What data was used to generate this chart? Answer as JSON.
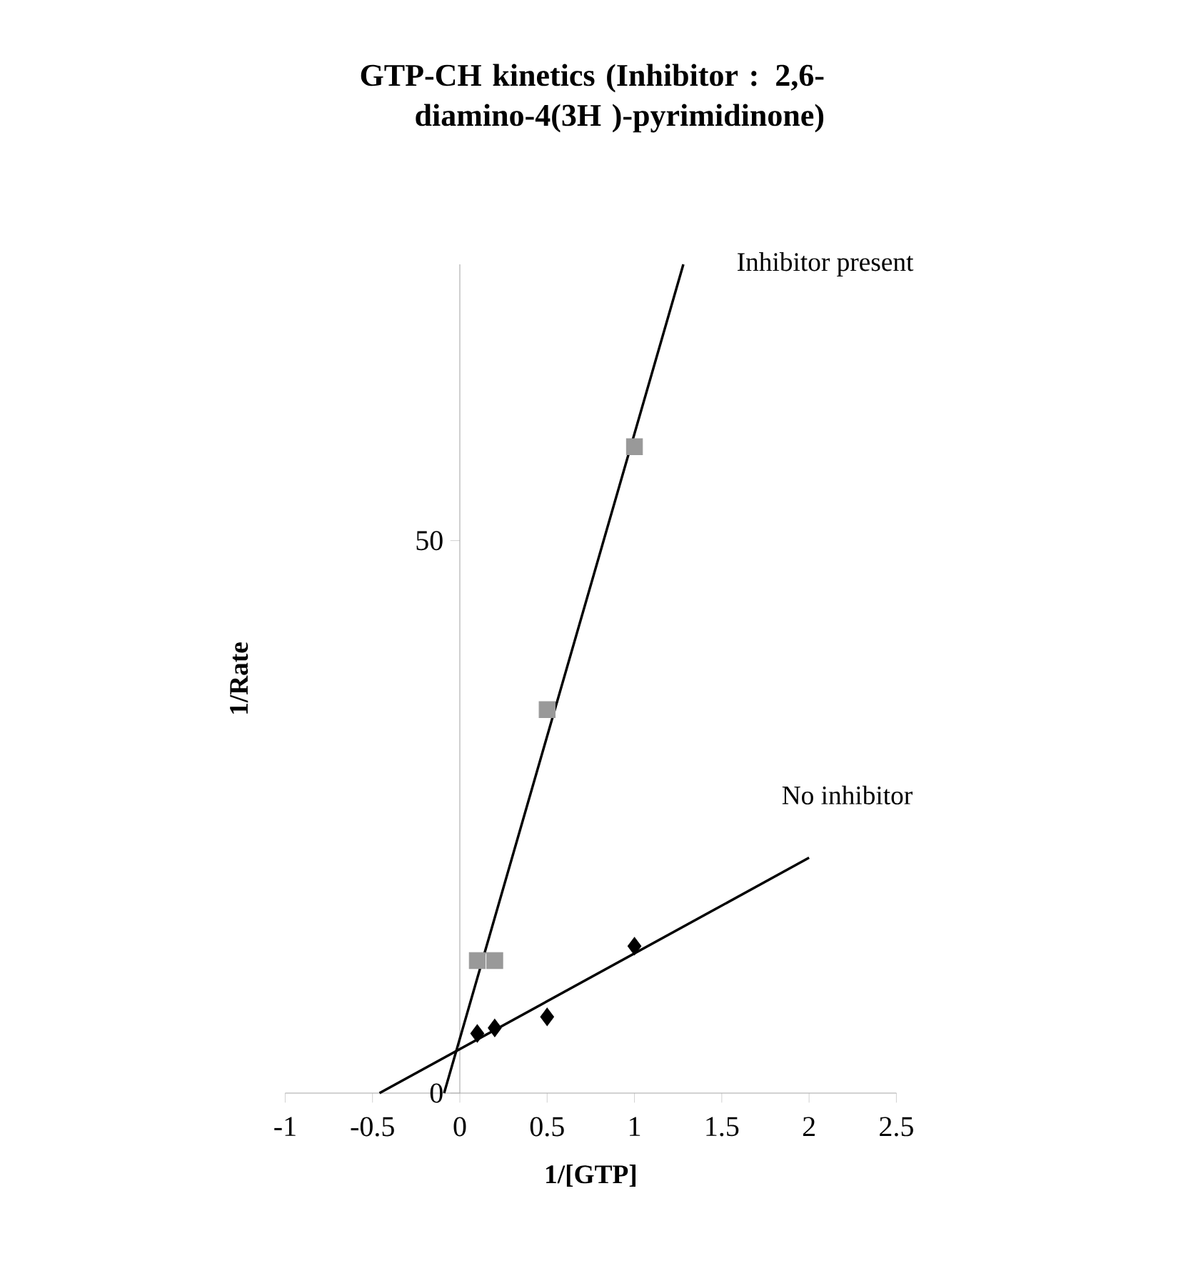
{
  "chart_data": {
    "type": "scatter",
    "title": "GTP-CH kinetics (Inhibitor : 2,6-diamino-4(3H )-pyrimidinone)",
    "xlabel": "1/[GTP]",
    "ylabel": "1/Rate",
    "xlim": [
      -1,
      2.5
    ],
    "ylim": [
      0,
      75
    ],
    "xticks": [
      -1,
      -0.5,
      0,
      0.5,
      1,
      1.5,
      2,
      2.5
    ],
    "yticks": [
      0,
      50
    ],
    "grid": false,
    "legend": false,
    "series": [
      {
        "name": "Inhibitor present",
        "type": "line",
        "x": [
          -0.09,
          1.28
        ],
        "values": [
          0,
          75
        ],
        "color": "#000000",
        "marker": "none",
        "line_style": "solid"
      },
      {
        "x": [
          0.1,
          0.2,
          0.5,
          1
        ],
        "values": [
          12,
          12,
          34.7,
          58.5
        ],
        "color": "#999999",
        "marker": "square"
      },
      {
        "name": "No inhibitor",
        "type": "line",
        "x": [
          -0.46,
          2
        ],
        "values": [
          0,
          21.3
        ],
        "color": "#000000",
        "marker": "none",
        "line_style": "solid"
      },
      {
        "x": [
          0.1,
          0.2,
          0.5,
          1
        ],
        "values": [
          5.4,
          5.9,
          6.9,
          13.3
        ],
        "color": "#000000",
        "marker": "diamond"
      }
    ]
  }
}
